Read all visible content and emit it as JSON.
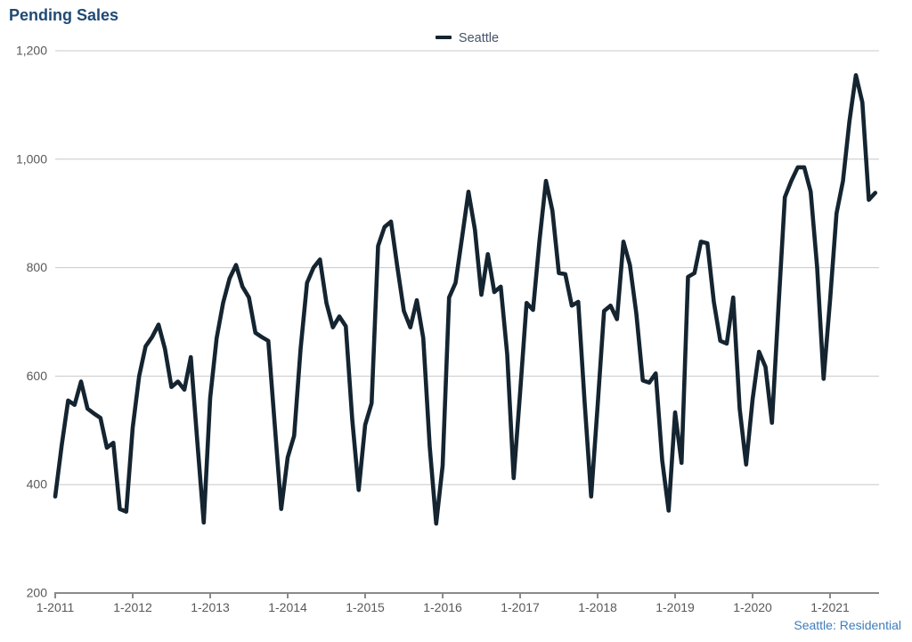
{
  "title": "Pending Sales",
  "legend": {
    "label": "Seattle"
  },
  "footer": "Seattle: Residential",
  "colors": {
    "line": "#142430",
    "title_text": "#1f4a73",
    "legend_text": "#44546a",
    "axis_label": "#595959",
    "gridline": "#c9c9c9",
    "axis_line": "#8a8a8a",
    "footer_text": "#3f7cba",
    "background": "#ffffff"
  },
  "chart_data": {
    "type": "line",
    "title": "Pending Sales",
    "xlabel": "",
    "ylabel": "",
    "ylim": [
      200,
      1200
    ],
    "grid": "horizontal",
    "legend_position": "top-center",
    "x_start": "2011-01",
    "x_frequency": "monthly",
    "y_ticks": [
      {
        "label": "1,200",
        "value": 1200
      },
      {
        "label": "1,000",
        "value": 1000
      },
      {
        "label": "800",
        "value": 800
      },
      {
        "label": "600",
        "value": 600
      },
      {
        "label": "400",
        "value": 400
      },
      {
        "label": "200",
        "value": 200
      }
    ],
    "x_ticks": [
      {
        "label": "1-2011",
        "month_index": 0
      },
      {
        "label": "1-2012",
        "month_index": 12
      },
      {
        "label": "1-2013",
        "month_index": 24
      },
      {
        "label": "1-2014",
        "month_index": 36
      },
      {
        "label": "1-2015",
        "month_index": 48
      },
      {
        "label": "1-2016",
        "month_index": 60
      },
      {
        "label": "1-2017",
        "month_index": 72
      },
      {
        "label": "1-2018",
        "month_index": 84
      },
      {
        "label": "1-2019",
        "month_index": 96
      },
      {
        "label": "1-2020",
        "month_index": 108
      },
      {
        "label": "1-2021",
        "month_index": 120
      }
    ],
    "series": [
      {
        "name": "Seattle",
        "values": [
          378,
          472,
          555,
          547,
          590,
          540,
          531,
          523,
          468,
          477,
          355,
          350,
          505,
          600,
          655,
          672,
          695,
          650,
          580,
          590,
          575,
          635,
          480,
          330,
          560,
          670,
          735,
          780,
          805,
          765,
          745,
          680,
          672,
          665,
          510,
          355,
          450,
          490,
          650,
          772,
          800,
          815,
          735,
          690,
          710,
          692,
          520,
          390,
          510,
          550,
          840,
          875,
          885,
          800,
          720,
          690,
          740,
          670,
          470,
          328,
          435,
          745,
          772,
          855,
          940,
          870,
          750,
          825,
          755,
          765,
          640,
          412,
          570,
          735,
          722,
          850,
          960,
          905,
          790,
          788,
          730,
          737,
          550,
          378,
          545,
          720,
          730,
          705,
          848,
          805,
          715,
          592,
          588,
          605,
          445,
          352,
          533,
          440,
          783,
          790,
          848,
          845,
          737,
          665,
          660,
          745,
          540,
          437,
          557,
          645,
          617,
          514,
          725,
          930,
          960,
          985,
          985,
          940,
          800,
          595,
          740,
          900,
          960,
          1070,
          1155,
          1105,
          925,
          938
        ]
      }
    ]
  }
}
